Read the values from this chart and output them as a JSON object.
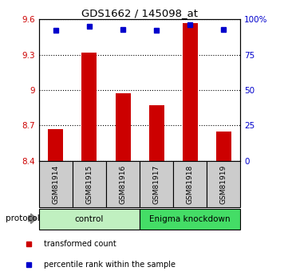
{
  "title": "GDS1662 / 145098_at",
  "samples": [
    "GSM81914",
    "GSM81915",
    "GSM81916",
    "GSM81917",
    "GSM81918",
    "GSM81919"
  ],
  "bar_values": [
    8.67,
    9.32,
    8.97,
    8.87,
    9.57,
    8.65
  ],
  "percentile_values": [
    92,
    95,
    93,
    92,
    96,
    93
  ],
  "ylim_left": [
    8.4,
    9.6
  ],
  "ylim_right": [
    0,
    100
  ],
  "yticks_left": [
    8.4,
    8.7,
    9.0,
    9.3,
    9.6
  ],
  "yticks_right": [
    0,
    25,
    50,
    75,
    100
  ],
  "ytick_labels_left": [
    "8.4",
    "8.7",
    "9",
    "9.3",
    "9.6"
  ],
  "ytick_labels_right": [
    "0",
    "25",
    "50",
    "75",
    "100%"
  ],
  "bar_color": "#cc0000",
  "dot_color": "#0000cc",
  "bar_base": 8.4,
  "group_spans": [
    {
      "start": 0,
      "end": 3,
      "label": "control",
      "color": "#c0f0c0"
    },
    {
      "start": 3,
      "end": 6,
      "label": "Enigma knockdown",
      "color": "#44dd66"
    }
  ],
  "protocol_label": "protocol",
  "legend_items": [
    {
      "label": "transformed count",
      "color": "#cc0000"
    },
    {
      "label": "percentile rank within the sample",
      "color": "#0000cc"
    }
  ],
  "sample_box_color": "#cccccc",
  "bar_width": 0.45
}
